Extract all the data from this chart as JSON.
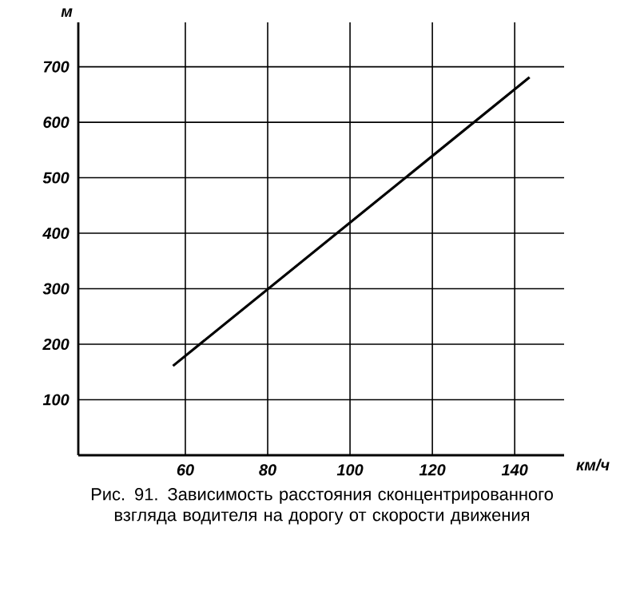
{
  "chart_data": {
    "type": "line",
    "xlabel": "км/ч",
    "ylabel": "м",
    "annotations": [
      "Рис. 91. Зависимость расстояния сконцентрированного взгляда водителя на дорогу от скорости движения"
    ],
    "x": [
      57,
      143.6
    ],
    "series": [
      {
        "color": "#000000",
        "values": [
          161,
          681
        ]
      }
    ],
    "xlim": [
      34,
      152
    ],
    "ylim": [
      0,
      780
    ],
    "xticks": [
      60,
      80,
      100,
      120,
      140
    ],
    "yticks": [
      100,
      200,
      300,
      400,
      500,
      600,
      700
    ],
    "grid": true,
    "marker": "none",
    "line_style": "solid"
  }
}
